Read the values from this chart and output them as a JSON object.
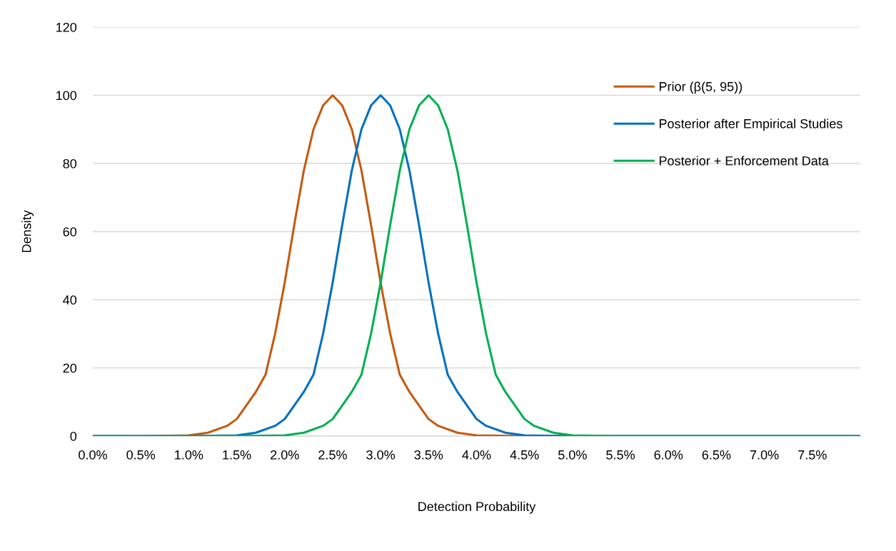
{
  "chart_data": {
    "type": "line",
    "xlabel": "Detection Probability",
    "ylabel": "Density",
    "xlim": [
      0,
      8
    ],
    "ylim": [
      0,
      120
    ],
    "xticks": [
      {
        "value": 0,
        "label": "0.0%"
      },
      {
        "value": 0.5,
        "label": "0.5%"
      },
      {
        "value": 1,
        "label": "1.0%"
      },
      {
        "value": 1.5,
        "label": "1.5%"
      },
      {
        "value": 2,
        "label": "2.0%"
      },
      {
        "value": 2.5,
        "label": "2.5%"
      },
      {
        "value": 3,
        "label": "3.0%"
      },
      {
        "value": 3.5,
        "label": "3.5%"
      },
      {
        "value": 4,
        "label": "4.0%"
      },
      {
        "value": 4.5,
        "label": "4.5%"
      },
      {
        "value": 5,
        "label": "5.0%"
      },
      {
        "value": 5.5,
        "label": "5.5%"
      },
      {
        "value": 6,
        "label": "6.0%"
      },
      {
        "value": 6.5,
        "label": "6.5%"
      },
      {
        "value": 7,
        "label": "7.0%"
      },
      {
        "value": 7.5,
        "label": "7.5%"
      }
    ],
    "yticks": [
      0,
      20,
      40,
      60,
      80,
      100,
      120
    ],
    "grid": "y",
    "legend": "top right",
    "marker": "none",
    "line_style": "solid",
    "series": [
      {
        "name": "Prior (β(5, 95))",
        "color": "#c55a11",
        "x": [
          0,
          0.5,
          1.0,
          1.2,
          1.4,
          1.5,
          1.6,
          1.7,
          1.8,
          1.9,
          2.0,
          2.1,
          2.2,
          2.3,
          2.4,
          2.5,
          2.6,
          2.7,
          2.8,
          2.9,
          3.0,
          3.1,
          3.2,
          3.3,
          3.4,
          3.5,
          3.6,
          3.8,
          4.0,
          4.5,
          8.0
        ],
        "values": [
          0,
          0,
          0.2,
          1,
          3,
          5,
          9,
          13,
          18,
          30,
          45,
          62,
          78,
          90,
          97,
          100,
          97,
          90,
          78,
          62,
          45,
          30,
          18,
          13,
          9,
          5,
          3,
          1,
          0.2,
          0,
          0
        ]
      },
      {
        "name": "Posterior after Empirical Studies",
        "color": "#0070c0",
        "x": [
          0,
          1.0,
          1.5,
          1.7,
          1.9,
          2.0,
          2.1,
          2.2,
          2.3,
          2.4,
          2.5,
          2.6,
          2.7,
          2.8,
          2.9,
          3.0,
          3.1,
          3.2,
          3.3,
          3.4,
          3.5,
          3.6,
          3.7,
          3.8,
          3.9,
          4.0,
          4.1,
          4.3,
          4.5,
          5.0,
          8.0
        ],
        "values": [
          0,
          0,
          0.2,
          1,
          3,
          5,
          9,
          13,
          18,
          30,
          45,
          62,
          78,
          90,
          97,
          100,
          97,
          90,
          78,
          62,
          45,
          30,
          18,
          13,
          9,
          5,
          3,
          1,
          0.2,
          0,
          0
        ]
      },
      {
        "name": "Posterior + Enforcement Data",
        "color": "#00b050",
        "x": [
          0,
          1.5,
          2.0,
          2.2,
          2.4,
          2.5,
          2.6,
          2.7,
          2.8,
          2.9,
          3.0,
          3.1,
          3.2,
          3.3,
          3.4,
          3.5,
          3.6,
          3.7,
          3.8,
          3.9,
          4.0,
          4.1,
          4.2,
          4.3,
          4.4,
          4.5,
          4.6,
          4.8,
          5.0,
          5.5,
          8.0
        ],
        "values": [
          0,
          0,
          0.2,
          1,
          3,
          5,
          9,
          13,
          18,
          30,
          45,
          62,
          78,
          90,
          97,
          100,
          97,
          90,
          78,
          62,
          45,
          30,
          18,
          13,
          9,
          5,
          3,
          1,
          0.2,
          0,
          0
        ]
      }
    ]
  }
}
